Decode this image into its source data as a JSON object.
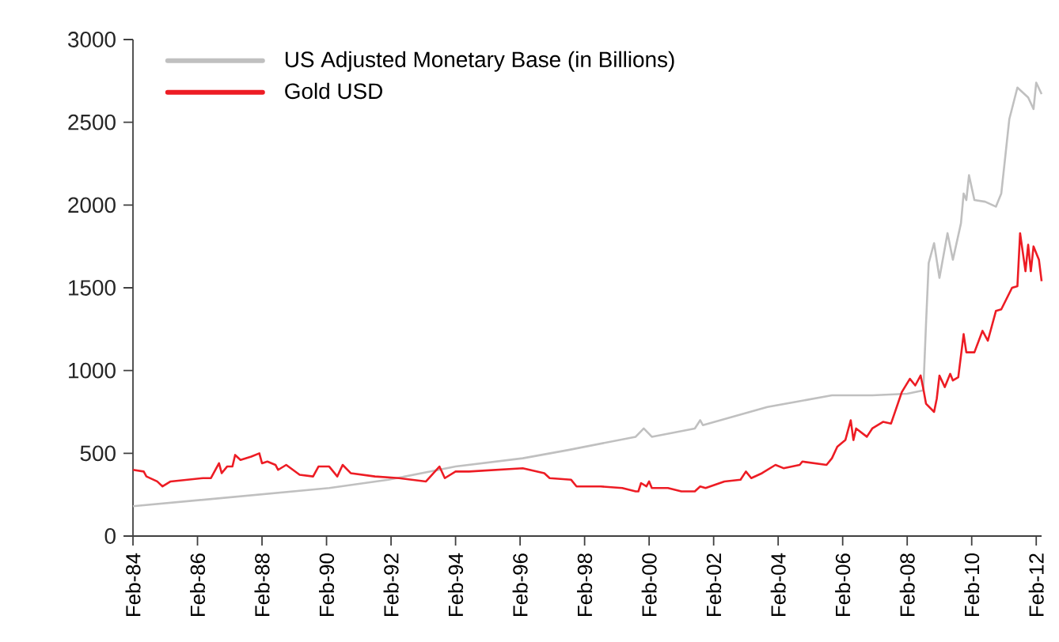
{
  "chart_data": {
    "type": "line",
    "xlim": [
      "1984-02",
      "2012-04"
    ],
    "ylim": [
      0,
      3000
    ],
    "yticks": [
      0,
      500,
      1000,
      1500,
      2000,
      2500,
      3000
    ],
    "xticks": [
      {
        "value": "1984-02",
        "label": "Feb-84"
      },
      {
        "value": "1986-02",
        "label": "Feb-86"
      },
      {
        "value": "1988-02",
        "label": "Feb-88"
      },
      {
        "value": "1990-02",
        "label": "Feb-90"
      },
      {
        "value": "1992-02",
        "label": "Feb-92"
      },
      {
        "value": "1994-02",
        "label": "Feb-94"
      },
      {
        "value": "1996-02",
        "label": "Feb-96"
      },
      {
        "value": "1998-02",
        "label": "Feb-98"
      },
      {
        "value": "2000-02",
        "label": "Feb-00"
      },
      {
        "value": "2002-02",
        "label": "Feb-02"
      },
      {
        "value": "2004-02",
        "label": "Feb-04"
      },
      {
        "value": "2006-02",
        "label": "Feb-06"
      },
      {
        "value": "2008-02",
        "label": "Feb-08"
      },
      {
        "value": "2010-02",
        "label": "Feb-10"
      },
      {
        "value": "2012-02",
        "label": "Feb-12"
      }
    ],
    "grid": false,
    "legend": "top left",
    "marker": "none",
    "line_style": "solid",
    "series": [
      {
        "name": "US Adjusted Monetary Base (in Billions)",
        "color": "#c0c0c0",
        "x": [
          "1984-02",
          "1990-03",
          "1992-01",
          "1994-02",
          "1996-03",
          "1997-08",
          "1999-09",
          "1999-12",
          "2000-03",
          "2001-07",
          "2001-09",
          "2001-10",
          "2003-10",
          "2005-10",
          "2007-01",
          "2008-02",
          "2008-08",
          "2008-09",
          "2008-10",
          "2008-12",
          "2009-02",
          "2009-05",
          "2009-07",
          "2009-10",
          "2009-11",
          "2009-12",
          "2010-01",
          "2010-03",
          "2010-07",
          "2010-11",
          "2011-01",
          "2011-04",
          "2011-07",
          "2011-11",
          "2012-01",
          "2012-02",
          "2012-04"
        ],
        "values": [
          180,
          290,
          340,
          420,
          470,
          520,
          600,
          650,
          600,
          650,
          700,
          670,
          780,
          850,
          850,
          860,
          880,
          1280,
          1650,
          1770,
          1560,
          1830,
          1670,
          1890,
          2070,
          2030,
          2180,
          2030,
          2020,
          1990,
          2070,
          2520,
          2710,
          2650,
          2580,
          2740,
          2670
        ]
      },
      {
        "name": "Gold USD",
        "color": "#ed1c24",
        "x": [
          "1984-02",
          "1984-06",
          "1984-07",
          "1984-11",
          "1985-01",
          "1985-04",
          "1986-04",
          "1986-07",
          "1986-10",
          "1986-11",
          "1987-01",
          "1987-03",
          "1987-04",
          "1987-06",
          "1987-10",
          "1988-01",
          "1988-02",
          "1988-04",
          "1988-07",
          "1988-08",
          "1988-11",
          "1989-04",
          "1989-09",
          "1989-11",
          "1990-03",
          "1990-06",
          "1990-08",
          "1990-11",
          "1991-08",
          "1992-05",
          "1992-10",
          "1993-03",
          "1993-08",
          "1993-10",
          "1994-02",
          "1994-07",
          "1996-03",
          "1996-11",
          "1997-01",
          "1997-09",
          "1997-11",
          "1998-08",
          "1999-04",
          "1999-09",
          "1999-10",
          "1999-11",
          "2000-01",
          "2000-02",
          "2000-03",
          "2000-09",
          "2001-02",
          "2001-07",
          "2001-09",
          "2001-11",
          "2002-06",
          "2002-12",
          "2003-02",
          "2003-04",
          "2003-08",
          "2004-01",
          "2004-04",
          "2004-10",
          "2004-11",
          "2005-08",
          "2005-10",
          "2005-12",
          "2006-03",
          "2006-05",
          "2006-06",
          "2006-07",
          "2006-11",
          "2007-01",
          "2007-05",
          "2007-08",
          "2007-12",
          "2008-03",
          "2008-05",
          "2008-07",
          "2008-08",
          "2008-09",
          "2008-12",
          "2009-01",
          "2009-02",
          "2009-04",
          "2009-06",
          "2009-07",
          "2009-09",
          "2009-11",
          "2009-12",
          "2010-03",
          "2010-06",
          "2010-08",
          "2010-11",
          "2011-01",
          "2011-05",
          "2011-07",
          "2011-08",
          "2011-10",
          "2011-11",
          "2011-12",
          "2012-01",
          "2012-03",
          "2012-04"
        ],
        "values": [
          400,
          390,
          360,
          330,
          300,
          330,
          350,
          350,
          440,
          380,
          420,
          420,
          490,
          460,
          480,
          500,
          440,
          450,
          430,
          400,
          430,
          370,
          360,
          420,
          420,
          360,
          430,
          380,
          360,
          350,
          340,
          330,
          420,
          350,
          390,
          390,
          410,
          380,
          350,
          340,
          300,
          300,
          290,
          270,
          270,
          320,
          300,
          330,
          290,
          290,
          270,
          270,
          300,
          290,
          330,
          340,
          390,
          350,
          380,
          430,
          410,
          430,
          450,
          430,
          470,
          540,
          580,
          700,
          580,
          650,
          600,
          650,
          690,
          680,
          870,
          950,
          910,
          970,
          890,
          800,
          750,
          830,
          970,
          900,
          980,
          940,
          960,
          1220,
          1110,
          1110,
          1240,
          1180,
          1360,
          1370,
          1500,
          1510,
          1830,
          1600,
          1760,
          1600,
          1750,
          1670,
          1540
        ]
      }
    ]
  }
}
